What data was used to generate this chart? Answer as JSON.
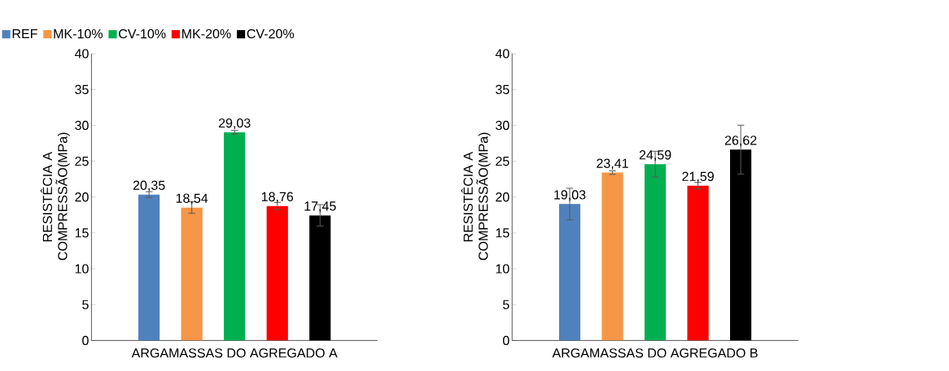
{
  "chart_data": [
    {
      "type": "bar",
      "categories": [
        null
      ],
      "xlabel": "ARGAMASSAS DO AGREGADO A",
      "ylabel": "RESISTÊCIA A COMPRESSÃO(MPa)",
      "ylim": [
        0,
        40
      ],
      "yticks": [
        0,
        5,
        10,
        15,
        20,
        25,
        30,
        35,
        40
      ],
      "legend": "top",
      "series": [
        {
          "name": "REF",
          "color": "#4f81bd",
          "values": [
            20.35
          ],
          "errors": [
            0.4
          ],
          "value_labels": [
            "20,35"
          ]
        },
        {
          "name": "MK-10%",
          "color": "#f79646",
          "values": [
            18.54
          ],
          "errors": [
            0.8
          ],
          "value_labels": [
            "18,54"
          ]
        },
        {
          "name": "CV-10%",
          "color": "#00b050",
          "values": [
            29.03
          ],
          "errors": [
            0.25
          ],
          "value_labels": [
            "29,03"
          ]
        },
        {
          "name": "MK-20%",
          "color": "#ff0000",
          "values": [
            18.76
          ],
          "errors": [
            0.5
          ],
          "value_labels": [
            "18,76"
          ]
        },
        {
          "name": "CV-20%",
          "color": "#000000",
          "values": [
            17.45
          ],
          "errors": [
            1.5
          ],
          "value_labels": [
            "17,45"
          ]
        }
      ]
    },
    {
      "type": "bar",
      "categories": [
        null
      ],
      "xlabel": "ARGAMASSAS DO AGREGADO B",
      "ylabel": "RESISTÊCIA A COMPRESSÃO(MPa)",
      "ylim": [
        0,
        40
      ],
      "yticks": [
        0,
        5,
        10,
        15,
        20,
        25,
        30,
        35,
        40
      ],
      "series": [
        {
          "color": "#4f81bd",
          "values": [
            19.03
          ],
          "errors": [
            2.2
          ],
          "value_labels": [
            "19,03"
          ]
        },
        {
          "color": "#f79646",
          "values": [
            23.41
          ],
          "errors": [
            0.25
          ],
          "value_labels": [
            "23,41"
          ]
        },
        {
          "color": "#00b050",
          "values": [
            24.59
          ],
          "errors": [
            1.8
          ],
          "value_labels": [
            "24,59"
          ]
        },
        {
          "color": "#ff0000",
          "values": [
            21.59
          ],
          "errors": [
            0.45
          ],
          "value_labels": [
            "21,59"
          ]
        },
        {
          "color": "#000000",
          "values": [
            26.62
          ],
          "errors": [
            3.4
          ],
          "value_labels": [
            "26,62"
          ]
        }
      ]
    }
  ]
}
